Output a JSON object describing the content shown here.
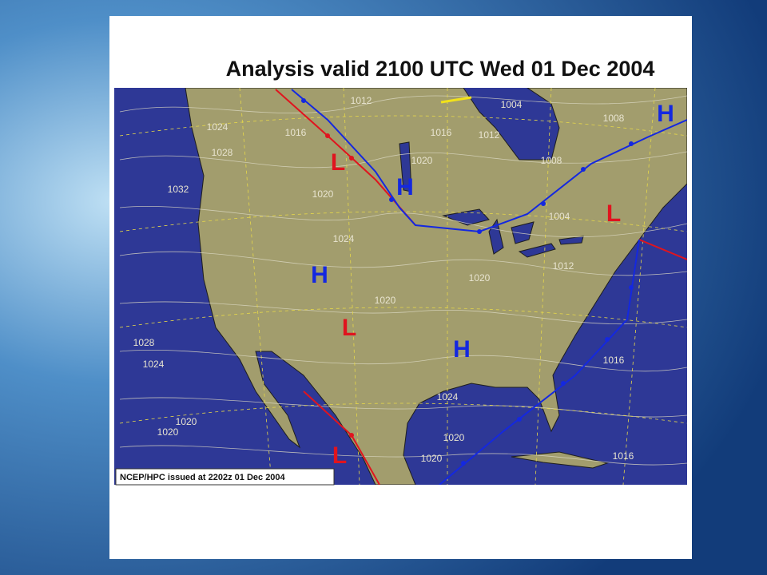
{
  "header": {
    "title": "Analysis valid 2100 UTC Wed 01 Dec 2004"
  },
  "map": {
    "issued": "NCEP/HPC issued at 2202z  01 Dec 2004",
    "centers": [
      {
        "label": "H",
        "color": "#1428e0"
      },
      {
        "label": "L",
        "color": "#e0141e"
      },
      {
        "label": "H",
        "color": "#1428e0"
      },
      {
        "label": "L",
        "color": "#e0141e"
      },
      {
        "label": "H",
        "color": "#1428e0"
      },
      {
        "label": "L",
        "color": "#e0141e"
      },
      {
        "label": "H",
        "color": "#1428e0"
      },
      {
        "label": "L",
        "color": "#e0141e"
      }
    ],
    "isobar_labels": [
      "1012",
      "1004",
      "1024",
      "1016",
      "1016",
      "1012",
      "1008",
      "1028",
      "1020",
      "1008",
      "1032",
      "1020",
      "1004",
      "1024",
      "1012",
      "1020",
      "1020",
      "1028",
      "1024",
      "1016",
      "1024",
      "1020",
      "1020",
      "1020",
      "1020",
      "1016"
    ]
  }
}
